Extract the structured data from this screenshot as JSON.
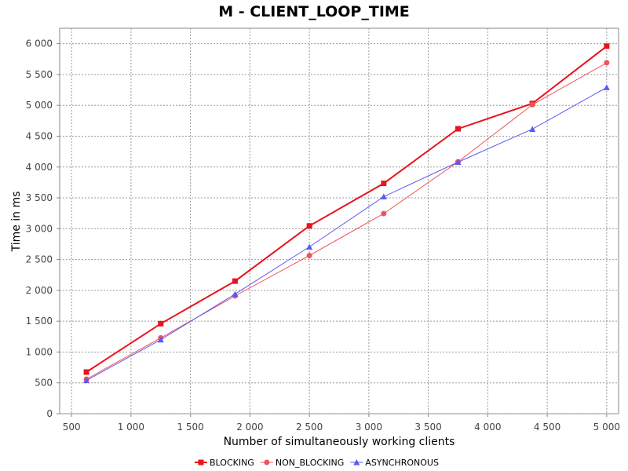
{
  "chart_data": {
    "type": "line",
    "title": "M - CLIENT_LOOP_TIME",
    "xlabel": "Number of simultaneously working clients",
    "ylabel": "Time in ms",
    "xlim": [
      400,
      5100
    ],
    "ylim": [
      0,
      6250
    ],
    "xticks": [
      500,
      1000,
      1500,
      2000,
      2500,
      3000,
      3500,
      4000,
      4500,
      5000
    ],
    "xtick_labels": [
      "500",
      "1 000",
      "1 500",
      "2 000",
      "2 500",
      "3 000",
      "3 500",
      "4 000",
      "4 500",
      "5 000"
    ],
    "yticks": [
      0,
      500,
      1000,
      1500,
      2000,
      2500,
      3000,
      3500,
      4000,
      4500,
      5000,
      5500,
      6000
    ],
    "ytick_labels": [
      "0",
      "500",
      "1 000",
      "1 500",
      "2 000",
      "2 500",
      "3 000",
      "3 500",
      "4 000",
      "4 500",
      "5 000",
      "5 500",
      "6 000"
    ],
    "grid": true,
    "legend_position": "bottom",
    "x": [
      625,
      1250,
      1875,
      2500,
      3125,
      3750,
      4375,
      5000
    ],
    "series": [
      {
        "name": "BLOCKING",
        "color": "#e8141c",
        "marker": "square",
        "bold": true,
        "values": [
          675,
          1460,
          2150,
          3045,
          3735,
          4620,
          5030,
          5960
        ]
      },
      {
        "name": "NON_BLOCKING",
        "color": "#f0545a",
        "marker": "circle",
        "bold": false,
        "values": [
          560,
          1230,
          1910,
          2565,
          3245,
          4085,
          5010,
          5690
        ]
      },
      {
        "name": "ASYNCHRONOUS",
        "color": "#5a5af0",
        "marker": "triangle",
        "bold": false,
        "values": [
          540,
          1200,
          1940,
          2705,
          3520,
          4080,
          4615,
          5290
        ]
      }
    ]
  }
}
